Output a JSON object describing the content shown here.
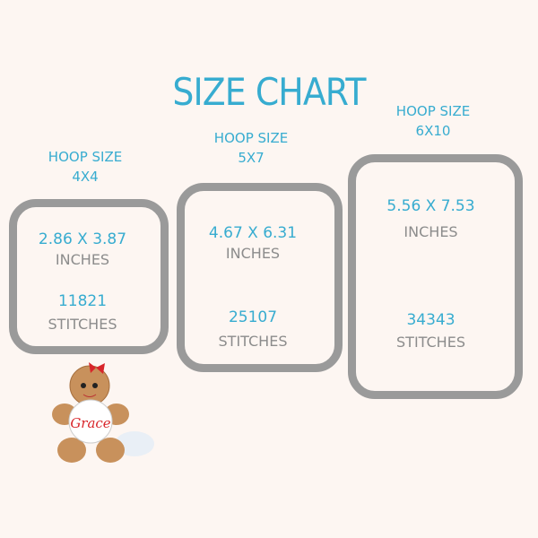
{
  "title": "SIZE CHART",
  "hoops": [
    {
      "label": "HOOP SIZE",
      "size": "4X4",
      "dimensions": "2.86 X 3.87",
      "dim_unit": "INCHES",
      "stitches": "11821",
      "stitch_unit": "STITCHES"
    },
    {
      "label": "HOOP SIZE",
      "size": "5X7",
      "dimensions": "4.67 X 6.31",
      "dim_unit": "INCHES",
      "stitches": "25107",
      "stitch_unit": "STITCHES"
    },
    {
      "label": "HOOP SIZE",
      "size": "6X10",
      "dimensions": "5.56 X 7.53",
      "dim_unit": "INCHES",
      "stitches": "34343",
      "stitch_unit": "STITCHES"
    }
  ],
  "design": {
    "name_text": "Grace"
  },
  "colors": {
    "accent": "#37acd0",
    "hoop": "#9a9a9a",
    "text_gray": "#8c8c8c",
    "background": "#fdf6f2"
  }
}
